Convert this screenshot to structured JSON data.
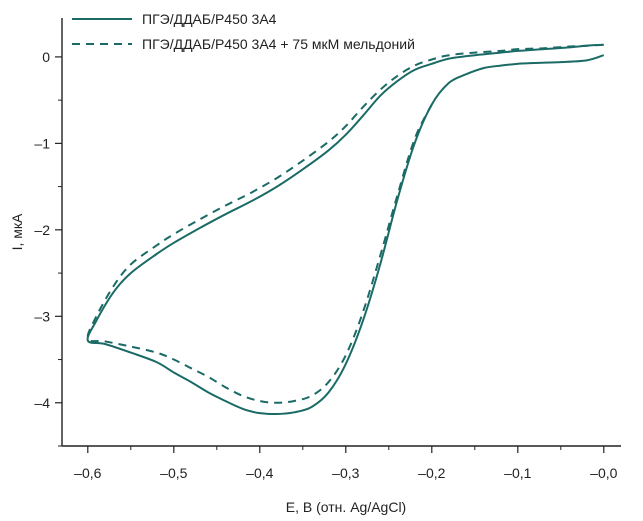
{
  "chart_data": {
    "type": "line",
    "title": "",
    "xlabel": "E, В (отн. Ag/AgCl)",
    "ylabel": "I, мкА",
    "xlim": [
      -0.63,
      0.02
    ],
    "ylim": [
      -4.5,
      0.45
    ],
    "x_ticks": [
      -0.6,
      -0.5,
      -0.4,
      -0.3,
      -0.2,
      -0.1,
      0.0
    ],
    "x_tick_labels": [
      "–0,6",
      "–0,5",
      "–0,4",
      "–0,3",
      "–0,2",
      "–0,1",
      "–0,0"
    ],
    "y_ticks": [
      0,
      -1,
      -2,
      -3,
      -4
    ],
    "y_tick_labels": [
      "0",
      "–1",
      "–2",
      "–3",
      "–4"
    ],
    "grid": false,
    "legend_position": "top-left",
    "line_color": "#1a6b66",
    "series": [
      {
        "name": "ПГЭ/ДДАБ/Р450 3А4",
        "style": "solid",
        "x": [
          0.0,
          -0.02,
          -0.05,
          -0.08,
          -0.1,
          -0.12,
          -0.14,
          -0.16,
          -0.18,
          -0.2,
          -0.22,
          -0.24,
          -0.26,
          -0.28,
          -0.3,
          -0.32,
          -0.34,
          -0.36,
          -0.38,
          -0.4,
          -0.41,
          -0.42,
          -0.44,
          -0.46,
          -0.48,
          -0.5,
          -0.52,
          -0.55,
          -0.58,
          -0.6,
          -0.59,
          -0.57,
          -0.55,
          -0.52,
          -0.5,
          -0.47,
          -0.44,
          -0.41,
          -0.38,
          -0.35,
          -0.32,
          -0.3,
          -0.28,
          -0.26,
          -0.24,
          -0.22,
          -0.2,
          -0.18,
          -0.15,
          -0.12,
          -0.1,
          -0.07,
          -0.04,
          -0.02,
          0.0
        ],
        "y": [
          0.02,
          -0.04,
          -0.06,
          -0.07,
          -0.08,
          -0.1,
          -0.13,
          -0.2,
          -0.3,
          -0.55,
          -1.0,
          -1.65,
          -2.4,
          -3.05,
          -3.55,
          -3.88,
          -4.05,
          -4.11,
          -4.13,
          -4.12,
          -4.1,
          -4.07,
          -3.98,
          -3.88,
          -3.76,
          -3.65,
          -3.53,
          -3.42,
          -3.32,
          -3.28,
          -3.05,
          -2.72,
          -2.5,
          -2.28,
          -2.15,
          -1.98,
          -1.82,
          -1.67,
          -1.5,
          -1.3,
          -1.08,
          -0.9,
          -0.68,
          -0.45,
          -0.28,
          -0.15,
          -0.08,
          -0.02,
          0.02,
          0.05,
          0.07,
          0.09,
          0.11,
          0.13,
          0.14
        ]
      },
      {
        "name": "ПГЭ/ДДАБ/Р450 3А4 + 75 мкМ мельдоний",
        "style": "dashed",
        "x": [
          -0.2,
          -0.22,
          -0.24,
          -0.26,
          -0.28,
          -0.3,
          -0.32,
          -0.34,
          -0.36,
          -0.38,
          -0.4,
          -0.42,
          -0.44,
          -0.46,
          -0.48,
          -0.5,
          -0.52,
          -0.55,
          -0.58,
          -0.6,
          -0.59,
          -0.57,
          -0.55,
          -0.52,
          -0.5,
          -0.47,
          -0.44,
          -0.41,
          -0.38,
          -0.35,
          -0.32,
          -0.3,
          -0.28,
          -0.26,
          -0.24,
          -0.22,
          -0.2,
          -0.18,
          -0.15,
          -0.12,
          -0.1,
          -0.07,
          -0.04,
          -0.02,
          0.0
        ],
        "y": [
          -0.55,
          -0.95,
          -1.6,
          -2.3,
          -2.95,
          -3.45,
          -3.76,
          -3.92,
          -3.98,
          -4.0,
          -3.98,
          -3.92,
          -3.82,
          -3.7,
          -3.6,
          -3.5,
          -3.42,
          -3.35,
          -3.29,
          -3.26,
          -3.0,
          -2.65,
          -2.4,
          -2.18,
          -2.05,
          -1.88,
          -1.72,
          -1.57,
          -1.4,
          -1.2,
          -0.98,
          -0.8,
          -0.58,
          -0.38,
          -0.22,
          -0.1,
          -0.03,
          0.02,
          0.05,
          0.07,
          0.09,
          0.1,
          0.12,
          0.13,
          0.14
        ]
      }
    ]
  }
}
